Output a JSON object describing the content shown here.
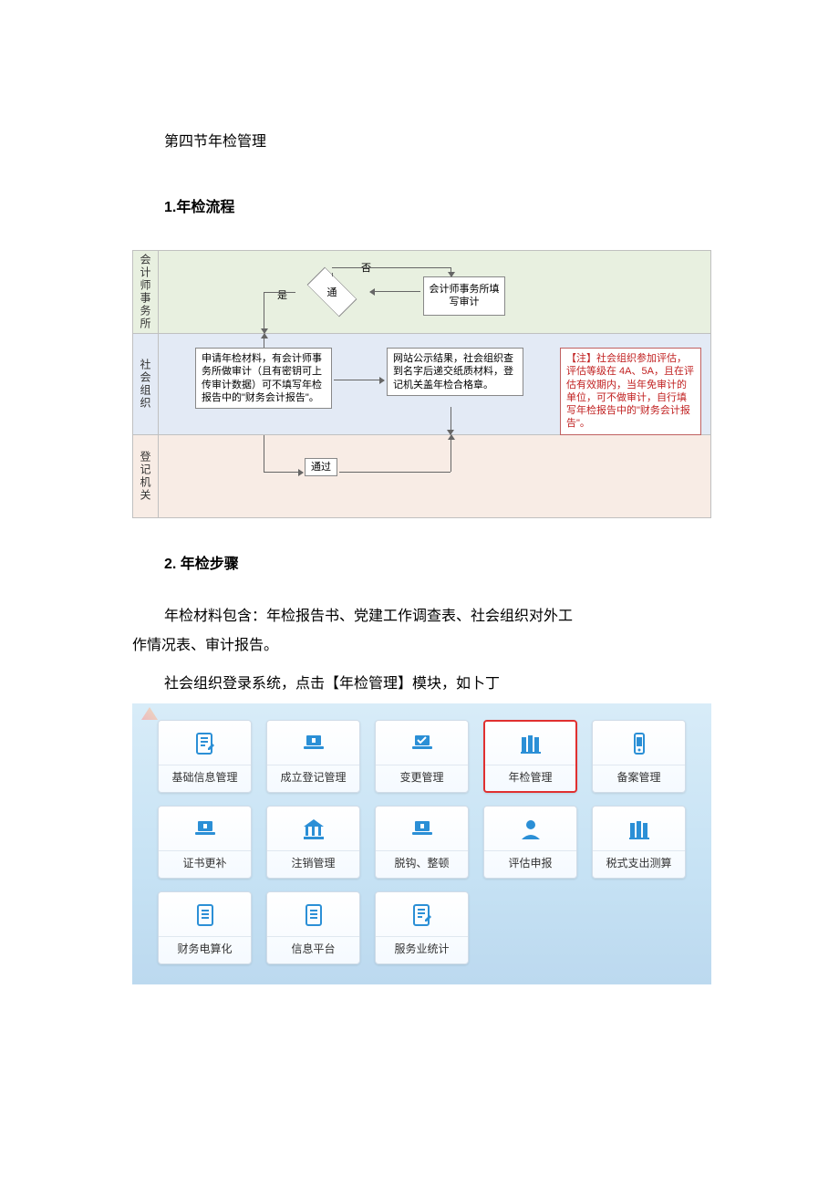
{
  "doc": {
    "section_title": "第四节年检管理",
    "sub1": "1.年检流程",
    "sub2": "2. 年检步骤",
    "para1_indent": "年检材料包含：年检报告书、党建工作调查表、社会组织对外工",
    "para1_rest": "作情况表、审计报告。",
    "para2": "社会组织登录系统，点击【年检管理】模块，如卜丁"
  },
  "flowchart": {
    "lane1_label": "会计师事务所",
    "lane2_label": "社会组织",
    "lane3_label": "登记机关",
    "diamond_text": "通",
    "no_label": "否",
    "yes_label": "是",
    "audit_box": "会计师事务所填写审计",
    "material_box": "申请年检材料，有会计师事务所做审计（且有密钥可上传审计数据）可不填写年检报告中的\"财务会计报告\"。",
    "publish_box": "网站公示结果，社会组织查到名字后递交纸质材料，登记机关盖年检合格章。",
    "note_box": "【注】社会组织参加评估，评估等级在 4A、5A，且在评估有效期内，当年免审计的单位，可不做审计，自行填写年检报告中的\"财务会计报告\"。",
    "pass_box": "通过"
  },
  "modules": {
    "items": [
      {
        "label": "基础信息管理",
        "icon": "doc-edit"
      },
      {
        "label": "成立登记管理",
        "icon": "laptop-up"
      },
      {
        "label": "变更管理",
        "icon": "laptop-check"
      },
      {
        "label": "年检管理",
        "icon": "books",
        "highlight": true
      },
      {
        "label": "备案管理",
        "icon": "phone"
      },
      {
        "label": "证书更补",
        "icon": "laptop-up"
      },
      {
        "label": "注销管理",
        "icon": "bank"
      },
      {
        "label": "脱钩、整顿",
        "icon": "laptop-up"
      },
      {
        "label": "评估申报",
        "icon": "person"
      },
      {
        "label": "税式支出测算",
        "icon": "books"
      },
      {
        "label": "财务电算化",
        "icon": "doc"
      },
      {
        "label": "信息平台",
        "icon": "doc"
      },
      {
        "label": "服务业统计",
        "icon": "doc-edit"
      }
    ]
  },
  "colors": {
    "icon_blue": "#2b8fd6",
    "highlight_red": "#e03030"
  }
}
